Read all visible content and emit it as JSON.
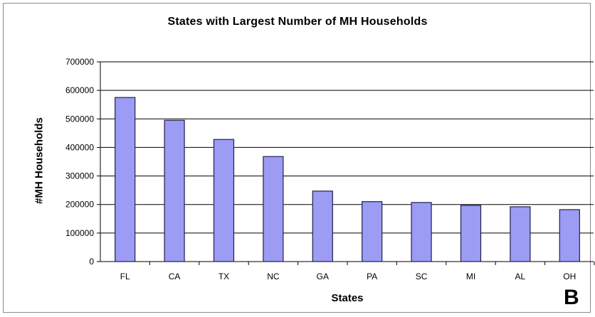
{
  "corner_letter": "B",
  "chart_data": {
    "type": "bar",
    "title": "States with Largest Number of MH Households",
    "xlabel": "States",
    "ylabel": "#MH Households",
    "categories": [
      "FL",
      "CA",
      "TX",
      "NC",
      "GA",
      "PA",
      "SC",
      "MI",
      "AL",
      "OH"
    ],
    "values": [
      575000,
      495000,
      428000,
      368000,
      247000,
      210000,
      207000,
      197000,
      192000,
      182000
    ],
    "ylim": [
      0,
      700000
    ],
    "yticks": [
      "0",
      "100000",
      "200000",
      "300000",
      "400000",
      "500000",
      "600000",
      "700000"
    ],
    "grid": true,
    "legend": "none",
    "bar_color": "#9c9cf4",
    "bar_edge_color": "#1f1f4f"
  }
}
